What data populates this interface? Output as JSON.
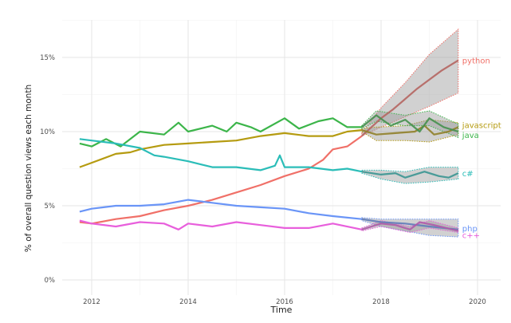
{
  "chart_data": {
    "type": "line",
    "title": "",
    "xlabel": "Time",
    "ylabel": "% of overall question views each month",
    "xlim": [
      2011.4,
      2020.5
    ],
    "ylim": [
      -0.8,
      17.6
    ],
    "x_ticks": [
      {
        "value": 2012,
        "label": "2012"
      },
      {
        "value": 2014,
        "label": "2014"
      },
      {
        "value": 2016,
        "label": "2016"
      },
      {
        "value": 2018,
        "label": "2018"
      },
      {
        "value": 2020,
        "label": "2020"
      }
    ],
    "y_ticks": [
      {
        "value": 0,
        "label": "0%"
      },
      {
        "value": 5,
        "label": "5%"
      },
      {
        "value": 10,
        "label": "10%"
      },
      {
        "value": 15,
        "label": "15%"
      }
    ],
    "grid": true,
    "legend": "direct labels at right end of lines",
    "series": [
      {
        "name": "python",
        "color": "#f07068",
        "observed": [
          [
            2011.75,
            3.9
          ],
          [
            2012,
            3.8
          ],
          [
            2012.5,
            4.1
          ],
          [
            2013,
            4.3
          ],
          [
            2013.5,
            4.7
          ],
          [
            2014,
            5.0
          ],
          [
            2014.5,
            5.4
          ],
          [
            2015,
            5.9
          ],
          [
            2015.5,
            6.4
          ],
          [
            2016,
            7.0
          ],
          [
            2016.5,
            7.5
          ],
          [
            2016.8,
            8.1
          ],
          [
            2017,
            8.8
          ],
          [
            2017.3,
            9.0
          ],
          [
            2017.6,
            9.7
          ]
        ],
        "forecast": [
          [
            2017.6,
            9.7
          ],
          [
            2018,
            10.9
          ],
          [
            2018.25,
            11.5
          ],
          [
            2018.5,
            12.2
          ],
          [
            2018.75,
            12.9
          ],
          [
            2019,
            13.5
          ],
          [
            2019.25,
            14.1
          ],
          [
            2019.6,
            14.8
          ]
        ],
        "lower": [
          [
            2017.6,
            9.7
          ],
          [
            2018,
            10.3
          ],
          [
            2018.5,
            11.0
          ],
          [
            2019,
            11.7
          ],
          [
            2019.6,
            12.6
          ]
        ],
        "upper": [
          [
            2017.6,
            9.9
          ],
          [
            2018,
            11.6
          ],
          [
            2018.5,
            13.3
          ],
          [
            2019,
            15.2
          ],
          [
            2019.6,
            16.9
          ]
        ]
      },
      {
        "name": "javascript",
        "color": "#b59b10",
        "observed": [
          [
            2011.75,
            7.6
          ],
          [
            2012,
            7.9
          ],
          [
            2012.5,
            8.5
          ],
          [
            2012.8,
            8.6
          ],
          [
            2013,
            8.8
          ],
          [
            2013.5,
            9.1
          ],
          [
            2014,
            9.2
          ],
          [
            2014.5,
            9.3
          ],
          [
            2015,
            9.4
          ],
          [
            2015.5,
            9.7
          ],
          [
            2016,
            9.9
          ],
          [
            2016.5,
            9.7
          ],
          [
            2017,
            9.7
          ],
          [
            2017.3,
            10.0
          ],
          [
            2017.6,
            10.1
          ]
        ],
        "forecast": [
          [
            2017.6,
            10.1
          ],
          [
            2017.9,
            9.8
          ],
          [
            2018.3,
            9.9
          ],
          [
            2018.7,
            10.0
          ],
          [
            2018.9,
            10.4
          ],
          [
            2019.1,
            9.8
          ],
          [
            2019.4,
            10.0
          ],
          [
            2019.6,
            10.3
          ]
        ],
        "lower": [
          [
            2017.6,
            10.0
          ],
          [
            2017.9,
            9.4
          ],
          [
            2018.5,
            9.4
          ],
          [
            2019,
            9.3
          ],
          [
            2019.6,
            9.8
          ]
        ],
        "upper": [
          [
            2017.6,
            10.2
          ],
          [
            2017.9,
            10.3
          ],
          [
            2018.5,
            10.4
          ],
          [
            2019,
            10.8
          ],
          [
            2019.6,
            10.6
          ]
        ]
      },
      {
        "name": "java",
        "color": "#3cb54a",
        "observed": [
          [
            2011.75,
            9.2
          ],
          [
            2012,
            9.0
          ],
          [
            2012.3,
            9.5
          ],
          [
            2012.6,
            9.0
          ],
          [
            2013,
            10.0
          ],
          [
            2013.5,
            9.8
          ],
          [
            2013.8,
            10.6
          ],
          [
            2014,
            10.0
          ],
          [
            2014.5,
            10.4
          ],
          [
            2014.8,
            10.0
          ],
          [
            2015,
            10.6
          ],
          [
            2015.3,
            10.3
          ],
          [
            2015.5,
            10.0
          ],
          [
            2016,
            10.9
          ],
          [
            2016.3,
            10.2
          ],
          [
            2016.7,
            10.7
          ],
          [
            2017,
            10.9
          ],
          [
            2017.3,
            10.3
          ],
          [
            2017.6,
            10.3
          ]
        ],
        "forecast": [
          [
            2017.6,
            10.3
          ],
          [
            2017.9,
            11.1
          ],
          [
            2018.2,
            10.4
          ],
          [
            2018.5,
            10.8
          ],
          [
            2018.8,
            10.0
          ],
          [
            2019,
            10.9
          ],
          [
            2019.3,
            10.3
          ],
          [
            2019.6,
            10.0
          ]
        ],
        "lower": [
          [
            2017.6,
            10.2
          ],
          [
            2017.9,
            10.7
          ],
          [
            2018.5,
            10.4
          ],
          [
            2019,
            10.4
          ],
          [
            2019.6,
            9.6
          ]
        ],
        "upper": [
          [
            2017.6,
            10.4
          ],
          [
            2017.9,
            11.4
          ],
          [
            2018.5,
            11.1
          ],
          [
            2019,
            11.4
          ],
          [
            2019.6,
            10.5
          ]
        ]
      },
      {
        "name": "c#",
        "color": "#2bbdb8",
        "observed": [
          [
            2011.75,
            9.5
          ],
          [
            2012,
            9.4
          ],
          [
            2012.5,
            9.2
          ],
          [
            2013,
            8.9
          ],
          [
            2013.3,
            8.4
          ],
          [
            2013.5,
            8.3
          ],
          [
            2014,
            8.0
          ],
          [
            2014.5,
            7.6
          ],
          [
            2015,
            7.6
          ],
          [
            2015.5,
            7.4
          ],
          [
            2015.8,
            7.7
          ],
          [
            2015.9,
            8.4
          ],
          [
            2016,
            7.6
          ],
          [
            2016.5,
            7.6
          ],
          [
            2017,
            7.4
          ],
          [
            2017.3,
            7.5
          ],
          [
            2017.6,
            7.3
          ]
        ],
        "forecast": [
          [
            2017.6,
            7.3
          ],
          [
            2018,
            7.1
          ],
          [
            2018.3,
            7.2
          ],
          [
            2018.5,
            6.9
          ],
          [
            2018.9,
            7.3
          ],
          [
            2019.2,
            7.0
          ],
          [
            2019.4,
            6.9
          ],
          [
            2019.6,
            7.2
          ]
        ],
        "lower": [
          [
            2017.6,
            7.2
          ],
          [
            2018,
            6.8
          ],
          [
            2018.5,
            6.5
          ],
          [
            2019,
            6.6
          ],
          [
            2019.6,
            6.8
          ]
        ],
        "upper": [
          [
            2017.6,
            7.4
          ],
          [
            2018,
            7.4
          ],
          [
            2018.5,
            7.3
          ],
          [
            2019,
            7.6
          ],
          [
            2019.6,
            7.6
          ]
        ]
      },
      {
        "name": "php",
        "color": "#6a95f7",
        "observed": [
          [
            2011.75,
            4.6
          ],
          [
            2012,
            4.8
          ],
          [
            2012.5,
            5.0
          ],
          [
            2013,
            5.0
          ],
          [
            2013.5,
            5.1
          ],
          [
            2014,
            5.4
          ],
          [
            2014.5,
            5.2
          ],
          [
            2015,
            5.0
          ],
          [
            2015.5,
            4.9
          ],
          [
            2016,
            4.8
          ],
          [
            2016.5,
            4.5
          ],
          [
            2017,
            4.3
          ],
          [
            2017.6,
            4.1
          ]
        ],
        "forecast": [
          [
            2017.6,
            4.1
          ],
          [
            2018,
            3.9
          ],
          [
            2018.5,
            3.8
          ],
          [
            2019,
            3.6
          ],
          [
            2019.6,
            3.4
          ]
        ],
        "lower": [
          [
            2017.6,
            4.0
          ],
          [
            2018,
            3.6
          ],
          [
            2018.5,
            3.3
          ],
          [
            2019,
            3.0
          ],
          [
            2019.6,
            2.9
          ]
        ],
        "upper": [
          [
            2017.6,
            4.2
          ],
          [
            2018,
            4.1
          ],
          [
            2018.5,
            4.1
          ],
          [
            2019,
            4.1
          ],
          [
            2019.6,
            4.1
          ]
        ]
      },
      {
        "name": "c++",
        "color": "#e85fdc",
        "observed": [
          [
            2011.75,
            4.0
          ],
          [
            2012,
            3.8
          ],
          [
            2012.5,
            3.6
          ],
          [
            2013,
            3.9
          ],
          [
            2013.5,
            3.8
          ],
          [
            2013.8,
            3.4
          ],
          [
            2014,
            3.8
          ],
          [
            2014.5,
            3.6
          ],
          [
            2015,
            3.9
          ],
          [
            2015.5,
            3.7
          ],
          [
            2016,
            3.5
          ],
          [
            2016.5,
            3.5
          ],
          [
            2017,
            3.8
          ],
          [
            2017.6,
            3.4
          ]
        ],
        "forecast": [
          [
            2017.6,
            3.4
          ],
          [
            2018,
            3.8
          ],
          [
            2018.3,
            3.7
          ],
          [
            2018.6,
            3.4
          ],
          [
            2018.8,
            3.9
          ],
          [
            2019.1,
            3.7
          ],
          [
            2019.6,
            3.3
          ]
        ],
        "lower": [
          [
            2017.6,
            3.3
          ],
          [
            2018,
            3.6
          ],
          [
            2018.6,
            3.2
          ],
          [
            2019,
            3.5
          ],
          [
            2019.6,
            3.2
          ]
        ],
        "upper": [
          [
            2017.6,
            3.5
          ],
          [
            2018,
            4.0
          ],
          [
            2018.6,
            3.6
          ],
          [
            2019,
            4.0
          ],
          [
            2019.6,
            3.5
          ]
        ]
      }
    ]
  }
}
